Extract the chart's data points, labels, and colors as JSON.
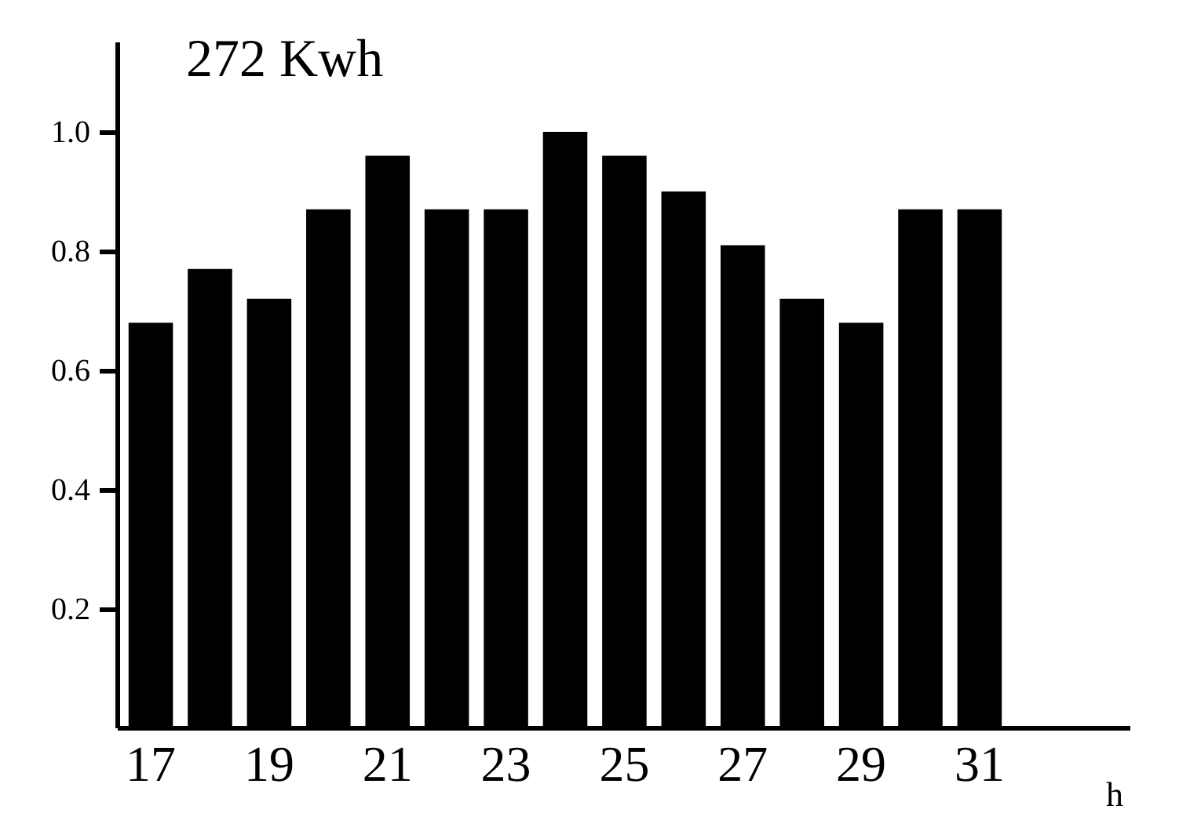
{
  "chart_data": {
    "type": "bar",
    "ylabel": "272 Kwh",
    "xlabel": "h",
    "categories": [
      "17",
      null,
      "19",
      null,
      "21",
      null,
      "23",
      null,
      "25",
      null,
      "27",
      null,
      "29",
      null,
      "31"
    ],
    "values": [
      0.68,
      0.77,
      0.72,
      0.87,
      0.96,
      0.87,
      0.87,
      1.0,
      0.96,
      0.9,
      0.81,
      0.72,
      0.68,
      0.87,
      0.87
    ],
    "color": "#000000",
    "ylim": [
      0,
      1.15
    ],
    "yticks": [
      0.2,
      0.4,
      0.6,
      0.8,
      {
        "value": 1,
        "label": "1.0"
      }
    ],
    "grid": false
  }
}
